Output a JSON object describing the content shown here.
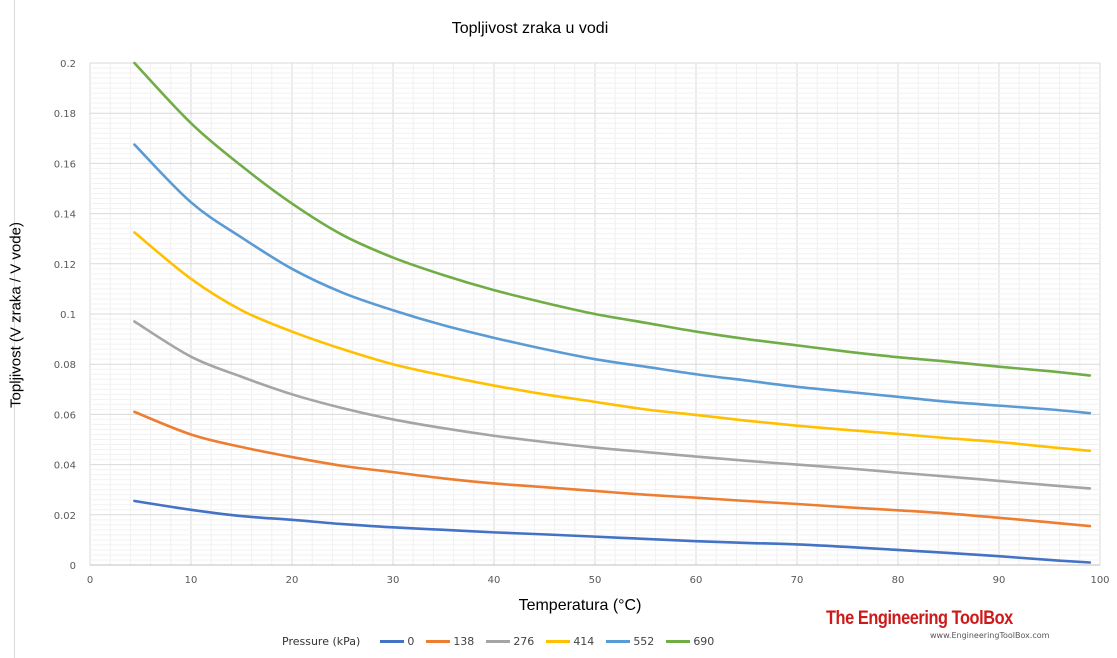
{
  "chart_data": {
    "type": "line",
    "title": "Topljivost zraka u vodi",
    "xlabel": "Temperatura (°C)",
    "ylabel": "Topljivost (V zraka / V vode)",
    "xlim": [
      0,
      100
    ],
    "ylim": [
      0,
      0.2
    ],
    "x_ticks": [
      "0",
      "10",
      "20",
      "30",
      "40",
      "50",
      "60",
      "70",
      "80",
      "90",
      "100"
    ],
    "y_ticks": [
      "0",
      "0.02",
      "0.04",
      "0.06",
      "0.08",
      "0.1",
      "0.12",
      "0.14",
      "0.16",
      "0.18",
      "0.2"
    ],
    "grid": true,
    "legend_title": "Pressure (kPa)",
    "legend_position": "bottom",
    "x": [
      4.4,
      10,
      15,
      20,
      25,
      30,
      35,
      40,
      45,
      50,
      55,
      60,
      65,
      70,
      75,
      80,
      85,
      90,
      95,
      99
    ],
    "series": [
      {
        "name": "0",
        "color": "#4472c4",
        "values": [
          0.0255,
          0.022,
          0.0195,
          0.018,
          0.0163,
          0.015,
          0.014,
          0.013,
          0.0122,
          0.0113,
          0.0104,
          0.0095,
          0.0088,
          0.0082,
          0.0072,
          0.006,
          0.0048,
          0.0035,
          0.002,
          0.001
        ]
      },
      {
        "name": "138",
        "color": "#ed7d31",
        "values": [
          0.061,
          0.052,
          0.047,
          0.043,
          0.0395,
          0.037,
          0.0345,
          0.0325,
          0.031,
          0.0295,
          0.028,
          0.0268,
          0.0255,
          0.0243,
          0.023,
          0.0218,
          0.0205,
          0.0188,
          0.017,
          0.0155
        ]
      },
      {
        "name": "276",
        "color": "#a5a5a5",
        "values": [
          0.097,
          0.083,
          0.075,
          0.068,
          0.0625,
          0.058,
          0.0545,
          0.0515,
          0.049,
          0.0468,
          0.045,
          0.0432,
          0.0415,
          0.04,
          0.0385,
          0.0368,
          0.0352,
          0.0335,
          0.0318,
          0.0305
        ]
      },
      {
        "name": "414",
        "color": "#ffc000",
        "values": [
          0.1325,
          0.114,
          0.1015,
          0.093,
          0.086,
          0.08,
          0.0755,
          0.0715,
          0.068,
          0.065,
          0.062,
          0.0598,
          0.0575,
          0.0555,
          0.0538,
          0.0522,
          0.0505,
          0.049,
          0.047,
          0.0455
        ]
      },
      {
        "name": "552",
        "color": "#5b9bd5",
        "values": [
          0.1675,
          0.1445,
          0.1305,
          0.118,
          0.1085,
          0.1015,
          0.0955,
          0.0905,
          0.086,
          0.082,
          0.079,
          0.076,
          0.0735,
          0.071,
          0.069,
          0.067,
          0.065,
          0.0635,
          0.062,
          0.0605
        ]
      },
      {
        "name": "690",
        "color": "#70ad47",
        "values": [
          0.2,
          0.176,
          0.159,
          0.144,
          0.1315,
          0.1225,
          0.1155,
          0.1095,
          0.1045,
          0.1,
          0.0965,
          0.093,
          0.09,
          0.0875,
          0.085,
          0.0828,
          0.081,
          0.079,
          0.0772,
          0.0755
        ]
      }
    ]
  },
  "branding": {
    "name": "The Engineering ToolBox",
    "url": "www.EngineeringToolBox.com"
  }
}
